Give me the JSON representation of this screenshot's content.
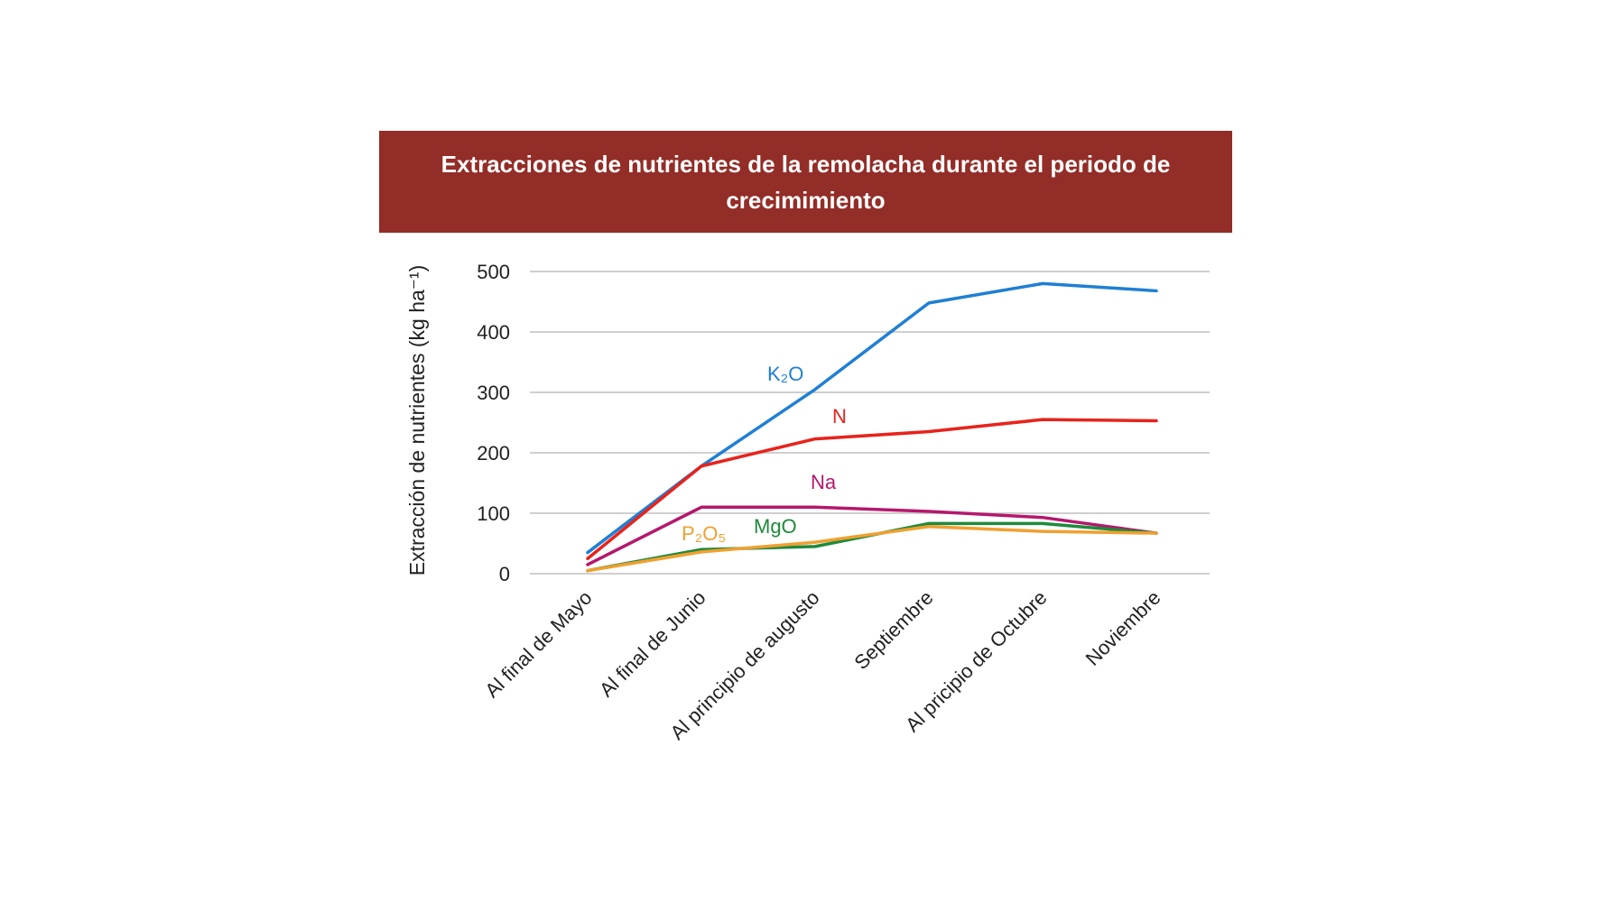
{
  "chart_data": {
    "type": "line",
    "title": "Extracciones de nutrientes de la remolacha durante el periodo de crecimimiento",
    "ylabel": "Extracción de nutrientes (kg ha⁻¹)",
    "xlabel": "",
    "categories": [
      "Al final de Mayo",
      "Al final de Junio",
      "Al principio de augusto",
      "Septiembre",
      "Al pricipio de Octubre",
      "Noviembre"
    ],
    "ylim": [
      0,
      500
    ],
    "yticks": [
      0,
      100,
      200,
      300,
      400,
      500
    ],
    "grid": true,
    "legend": "inline labels",
    "series": [
      {
        "name": "K₂O",
        "color": "#1f7fd4",
        "values": [
          35,
          178,
          305,
          448,
          480,
          468
        ]
      },
      {
        "name": "N",
        "color": "#e8231c",
        "values": [
          25,
          178,
          223,
          235,
          255,
          253
        ]
      },
      {
        "name": "Na",
        "color": "#b5186d",
        "values": [
          15,
          110,
          110,
          103,
          93,
          67
        ]
      },
      {
        "name": "MgO",
        "color": "#1e8a3c",
        "values": [
          5,
          40,
          45,
          83,
          83,
          67
        ]
      },
      {
        "name": "P₂O₅",
        "color": "#f0a030",
        "values": [
          5,
          36,
          52,
          78,
          70,
          67
        ]
      }
    ]
  }
}
